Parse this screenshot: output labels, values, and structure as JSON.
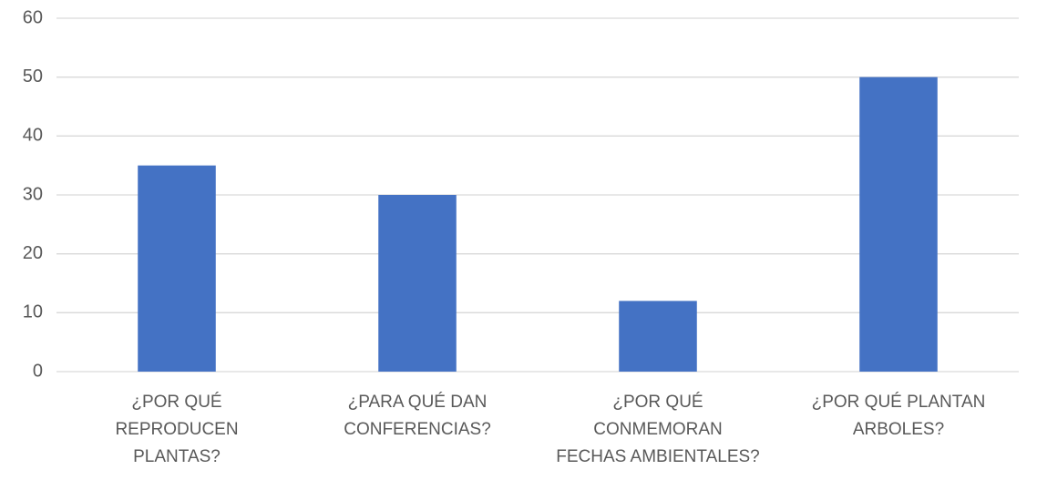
{
  "chart_data": {
    "type": "bar",
    "categories": [
      "¿POR QUÉ\nREPRODUCEN\nPLANTAS?",
      "¿PARA QUÉ DAN\nCONFERENCIAS?",
      "¿POR QUÉ\nCONMEMORAN\nFECHAS AMBIENTALES?",
      "¿POR QUÉ PLANTAN\nARBOLES?"
    ],
    "values": [
      35,
      30,
      12,
      50
    ],
    "color": "#4472c4",
    "ylim": [
      0,
      60
    ],
    "yticks": [
      0,
      10,
      20,
      30,
      40,
      50,
      60
    ],
    "grid": true
  }
}
